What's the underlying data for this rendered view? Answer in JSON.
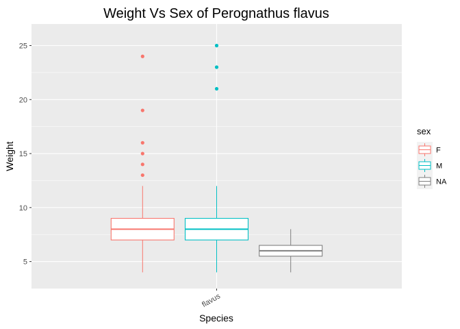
{
  "chart_data": {
    "type": "box",
    "title": "Weight Vs Sex of Perognathus flavus",
    "xlabel": "Species",
    "ylabel": "Weight",
    "categories": [
      "flavus"
    ],
    "ylim": [
      2.5,
      27
    ],
    "yticks": [
      5,
      10,
      15,
      20,
      25
    ],
    "grid": true,
    "legend": {
      "title": "sex",
      "position": "right"
    },
    "series": [
      {
        "name": "F",
        "color": "#F8766D",
        "box": {
          "lower_whisker": 4,
          "q1": 7,
          "median": 8,
          "q3": 9,
          "upper_whisker": 12
        },
        "outliers": [
          13,
          14,
          15,
          16,
          19,
          24
        ]
      },
      {
        "name": "M",
        "color": "#00BFC4",
        "box": {
          "lower_whisker": 4,
          "q1": 7,
          "median": 8,
          "q3": 9,
          "upper_whisker": 12
        },
        "outliers": [
          21,
          23,
          25
        ]
      },
      {
        "name": "NA",
        "color": "#7F7F7F",
        "box": {
          "lower_whisker": 4,
          "q1": 5.5,
          "median": 6,
          "q3": 6.5,
          "upper_whisker": 8
        },
        "outliers": []
      }
    ]
  }
}
